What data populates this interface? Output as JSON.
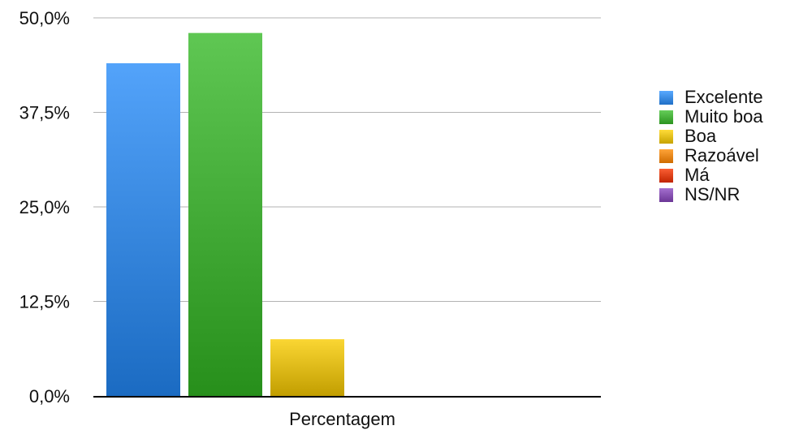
{
  "chart_data": {
    "type": "bar",
    "title": "",
    "xlabel": "",
    "ylabel": "",
    "categories": [
      "Percentagem"
    ],
    "ylim": [
      0,
      50
    ],
    "yticks": [
      "0,0%",
      "12,5%",
      "25,0%",
      "37,5%",
      "50,0%"
    ],
    "ytick_values": [
      0,
      12.5,
      25,
      37.5,
      50
    ],
    "grid": true,
    "legend_position": "right",
    "series": [
      {
        "name": "Excelente",
        "values": [
          44.0
        ],
        "color": "#3f8fe6"
      },
      {
        "name": "Muito boa",
        "values": [
          48.0
        ],
        "color": "#4bb33f"
      },
      {
        "name": "Boa",
        "values": [
          7.5
        ],
        "color": "#e6c21f"
      },
      {
        "name": "Razoável",
        "values": [
          0
        ],
        "color": "#ee8a1f"
      },
      {
        "name": "Má",
        "values": [
          0
        ],
        "color": "#e0441a"
      },
      {
        "name": "NS/NR",
        "values": [
          0
        ],
        "color": "#8a55b5"
      }
    ]
  }
}
